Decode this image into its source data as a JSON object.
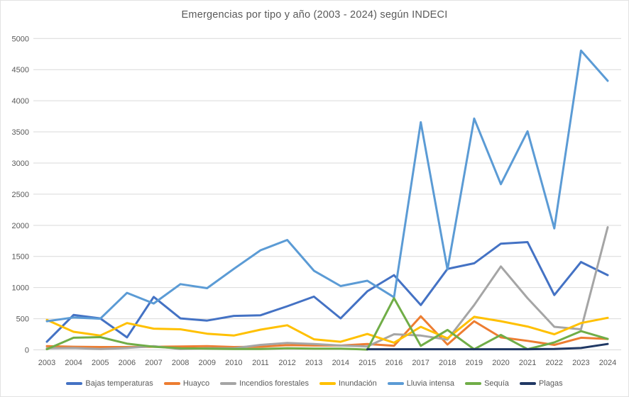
{
  "title": "Emergencias por tipo y año (2003 - 2024) según INDECI",
  "colors": {
    "background": "#FFFFFF",
    "border": "#E2E2E2",
    "title_text": "#595959",
    "axis_text": "#595959",
    "gridline": "#D9D9D9"
  },
  "chart_data": {
    "type": "line",
    "title": "Emergencias por tipo y año (2003 - 2024) según INDECI",
    "xlabel": "",
    "ylabel": "",
    "ylim": [
      0,
      5000
    ],
    "ytick_step": 500,
    "grid": true,
    "legend_position": "bottom",
    "categories": [
      "2003",
      "2004",
      "2005",
      "2006",
      "2007",
      "2008",
      "2009",
      "2010",
      "2011",
      "2012",
      "2013",
      "2014",
      "2015",
      "2016",
      "2017",
      "2018",
      "2019",
      "2020",
      "2021",
      "2022",
      "2023",
      "2024"
    ],
    "series": [
      {
        "name": "Bajas temperaturas",
        "color": "#4472C4",
        "values": [
          130,
          560,
          505,
          200,
          850,
          505,
          470,
          545,
          555,
          700,
          855,
          505,
          940,
          1200,
          720,
          1300,
          1390,
          1705,
          1730,
          880,
          1410,
          1200
        ]
      },
      {
        "name": "Huayco",
        "color": "#ED7D31",
        "values": [
          60,
          50,
          45,
          45,
          50,
          55,
          60,
          45,
          50,
          75,
          70,
          70,
          95,
          65,
          540,
          85,
          460,
          200,
          145,
          80,
          195,
          175
        ]
      },
      {
        "name": "Incendios forestales",
        "color": "#A5A5A5",
        "values": [
          25,
          30,
          15,
          30,
          60,
          15,
          25,
          25,
          80,
          110,
          95,
          70,
          55,
          250,
          230,
          165,
          720,
          1340,
          830,
          370,
          330,
          1970
        ]
      },
      {
        "name": "Inundación",
        "color": "#FFC000",
        "values": [
          480,
          290,
          230,
          430,
          340,
          330,
          260,
          230,
          325,
          395,
          170,
          130,
          255,
          115,
          370,
          185,
          530,
          460,
          375,
          250,
          430,
          515
        ]
      },
      {
        "name": "Lluvia intensa",
        "color": "#5B9BD5",
        "values": [
          460,
          520,
          500,
          915,
          745,
          1055,
          990,
          1300,
          1600,
          1765,
          1270,
          1025,
          1110,
          845,
          3655,
          1290,
          3715,
          2660,
          3510,
          1950,
          4805,
          4320
        ]
      },
      {
        "name": "Sequía",
        "color": "#70AD47",
        "values": [
          10,
          195,
          205,
          100,
          50,
          25,
          20,
          15,
          15,
          25,
          20,
          20,
          5,
          830,
          65,
          320,
          10,
          240,
          10,
          120,
          300,
          175
        ]
      },
      {
        "name": "Plagas",
        "color": "#203864",
        "values": [
          null,
          null,
          null,
          null,
          null,
          null,
          null,
          null,
          null,
          null,
          null,
          null,
          10,
          10,
          10,
          10,
          10,
          10,
          10,
          15,
          30,
          95
        ]
      }
    ]
  }
}
